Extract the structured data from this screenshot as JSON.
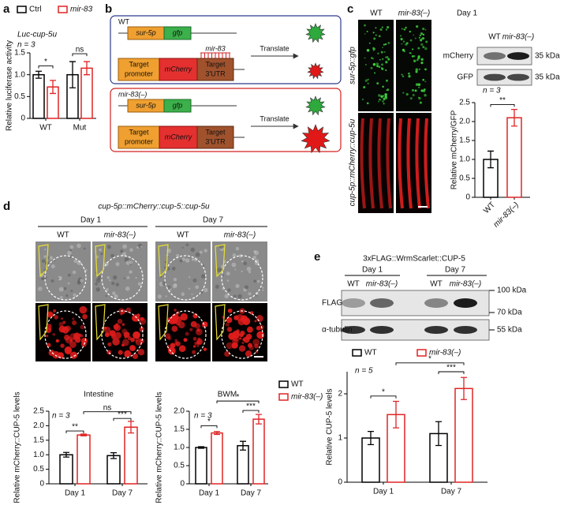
{
  "panel_labels": [
    "a",
    "b",
    "c",
    "d",
    "e"
  ],
  "diagram": {
    "wt": {
      "label": "WT",
      "promoter": "sur-5p",
      "reporter": "gfp",
      "mirna": "mir-83",
      "target_promoter": [
        "Target",
        "promoter"
      ],
      "target_gene": "mCherry",
      "target_utr": [
        "Target",
        "3'UTR"
      ],
      "action": "Translate"
    },
    "mutant": {
      "label": "mir-83(–)",
      "promoter": "sur-5p",
      "reporter": "gfp",
      "target_promoter": [
        "Target",
        "promoter"
      ],
      "target_gene": "mCherry",
      "target_utr": [
        "Target",
        "3'UTR"
      ],
      "action": "Translate"
    }
  },
  "panel_c": {
    "columns": [
      "WT",
      "mir-83(–)"
    ],
    "day": "Day 1",
    "rows": [
      "sur-5p::gfp",
      "cup-5p::mCherry::cup-5u"
    ],
    "blot": {
      "columns": [
        "WT",
        "mir-83(–)"
      ],
      "bands": [
        {
          "name": "mCherry",
          "size": "35 kDa"
        },
        {
          "name": "GFP",
          "size": "35 kDa"
        }
      ]
    }
  },
  "panel_d": {
    "title": "cup-5p::mCherry::cup-5::cup-5u",
    "groups": [
      {
        "name": "Day 1",
        "columns": [
          "WT",
          "mir-83(–)"
        ]
      },
      {
        "name": "Day 7",
        "columns": [
          "WT",
          "mir-83(–)"
        ]
      }
    ]
  },
  "panel_e": {
    "title": "3xFLAG::WrmScarlet::CUP-5",
    "groups": [
      {
        "name": "Day 1",
        "columns": [
          "WT",
          "mir-83(–)"
        ]
      },
      {
        "name": "Day 7",
        "columns": [
          "WT",
          "mir-83(–)"
        ]
      }
    ],
    "bands": [
      "FLAG",
      "α-tubulin"
    ],
    "markers": [
      "100 kDa",
      "70 kDa",
      "55 kDa"
    ]
  },
  "chart_data": [
    {
      "type": "bar",
      "title": "Luc-cup-5u",
      "ylabel": "Relative luciferase activity",
      "categories": [
        "WT",
        "Mut"
      ],
      "series": [
        {
          "name": "Ctrl",
          "color": "#000000",
          "values": [
            1.0,
            1.0
          ],
          "errors": [
            0.08,
            0.3
          ]
        },
        {
          "name": "mir-83",
          "color": "#e02424",
          "values": [
            0.72,
            1.15
          ],
          "errors": [
            0.15,
            0.15
          ]
        }
      ],
      "ylim": [
        0,
        1.5
      ],
      "yticks": [
        0,
        0.5,
        {
          "value": 1,
          "label": "1.0"
        },
        1.5
      ],
      "annotations": [
        "n = 3",
        "*",
        "ns"
      ],
      "legend": "top"
    },
    {
      "type": "bar",
      "ylabel": "Relative mCherry/GFP",
      "categories": [
        "WT",
        "mir-83(–)"
      ],
      "series": [
        {
          "colors": [
            "#000000",
            "#e02424"
          ],
          "values": [
            1.0,
            2.1
          ],
          "errors": [
            0.22,
            0.22
          ]
        }
      ],
      "ylim": [
        0,
        2.5
      ],
      "yticks": [
        0,
        0.5,
        {
          "value": 1,
          "label": "1.0"
        },
        1.5,
        {
          "value": 2,
          "label": "2.0"
        },
        2.5
      ],
      "annotations": [
        "n = 3",
        "**"
      ]
    },
    {
      "type": "bar",
      "title": "Intestine",
      "ylabel": "Relative mCherry::CUP-5 levels",
      "categories": [
        "Day 1",
        "Day 7"
      ],
      "series": [
        {
          "name": "WT",
          "color": "#000000",
          "values": [
            1.0,
            0.97
          ],
          "errors": [
            0.08,
            0.1
          ]
        },
        {
          "name": "mir-83(–)",
          "color": "#e02424",
          "values": [
            1.68,
            1.95
          ],
          "errors": [
            0.03,
            0.2
          ]
        }
      ],
      "ylim": [
        0,
        2.5
      ],
      "yticks": [
        0,
        0.5,
        {
          "value": 1,
          "label": "1.0"
        },
        1.5,
        {
          "value": 2,
          "label": "2.0"
        },
        2.5
      ],
      "annotations": [
        "n = 3",
        "**",
        "***",
        "ns"
      ]
    },
    {
      "type": "bar",
      "title": "BWM",
      "ylabel": "Relative mCherry::CUP-5 levels",
      "categories": [
        "Day 1",
        "Day 7"
      ],
      "series": [
        {
          "name": "WT",
          "color": "#000000",
          "values": [
            1.0,
            1.05
          ],
          "errors": [
            0.02,
            0.12
          ]
        },
        {
          "name": "mir-83(–)",
          "color": "#e02424",
          "values": [
            1.4,
            1.78
          ],
          "errors": [
            0.04,
            0.13
          ]
        }
      ],
      "ylim": [
        0,
        2
      ],
      "yticks": [
        0,
        0.5,
        {
          "value": 1,
          "label": "1.0"
        },
        1.5,
        {
          "value": 2,
          "label": "2.0"
        }
      ],
      "annotations": [
        "n = 3",
        "*",
        "***",
        "*"
      ],
      "legend": "right"
    },
    {
      "type": "bar",
      "ylabel": "Relative CUP-5 levels",
      "categories": [
        "Day 1",
        "Day 7"
      ],
      "series": [
        {
          "name": "WT",
          "color": "#000000",
          "values": [
            1.0,
            1.1
          ],
          "errors": [
            0.15,
            0.27
          ]
        },
        {
          "name": "mir-83(–)",
          "color": "#e02424",
          "values": [
            1.53,
            2.12
          ],
          "errors": [
            0.3,
            0.25
          ]
        }
      ],
      "ylim": [
        0,
        2.5
      ],
      "yticks": [
        0,
        1,
        2
      ],
      "annotations": [
        "n = 5",
        "*",
        "***",
        "*"
      ],
      "legend": "top"
    }
  ]
}
